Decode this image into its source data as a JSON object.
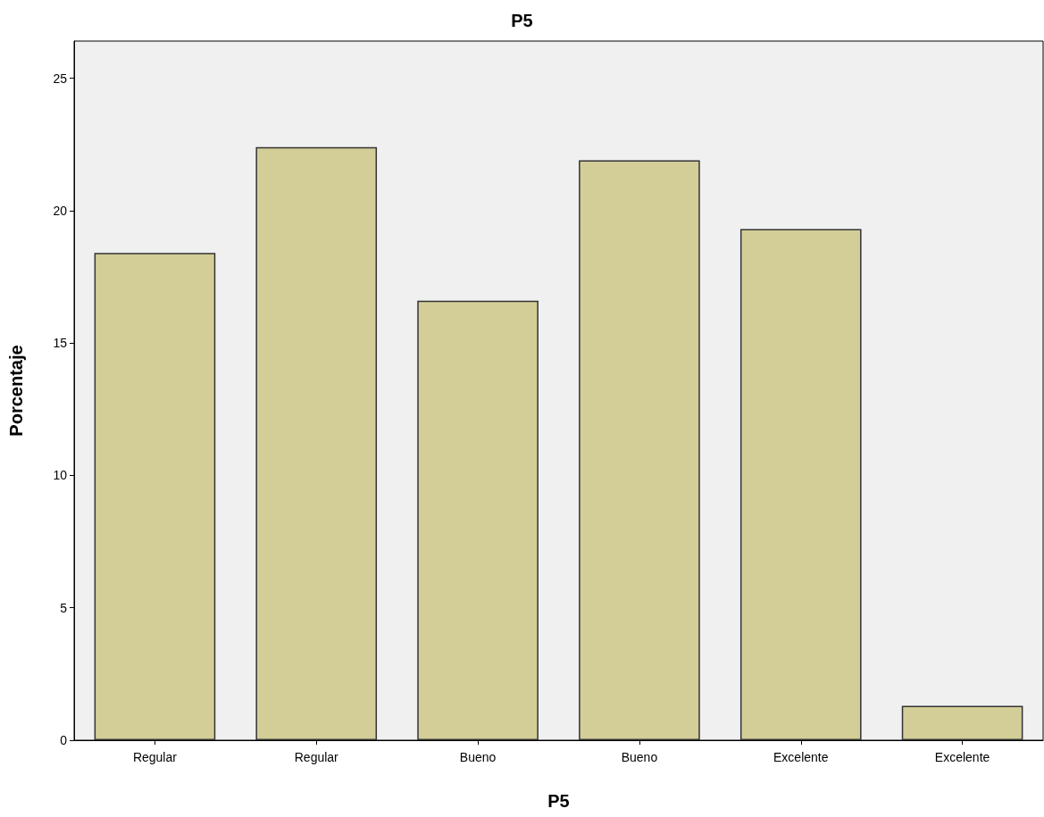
{
  "chart_data": {
    "type": "bar",
    "title": "P5",
    "xlabel": "P5",
    "ylabel": "Porcentaje",
    "categories": [
      "Regular",
      "Regular",
      "Bueno",
      "Bueno",
      "Excelente",
      "Excelente"
    ],
    "values": [
      18.4,
      22.4,
      16.6,
      21.9,
      19.3,
      1.3
    ],
    "color": "#d3ce97",
    "ylim": [
      0,
      26.4
    ],
    "yticks": [
      0,
      5,
      10,
      15,
      20,
      25
    ],
    "grid": false
  }
}
